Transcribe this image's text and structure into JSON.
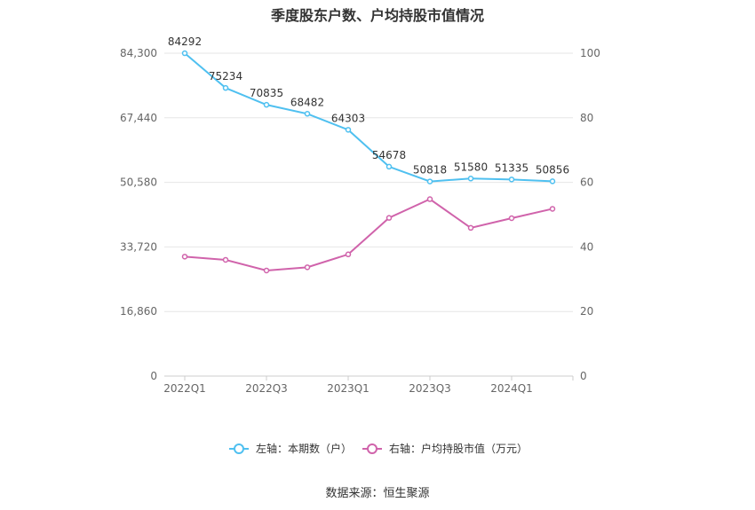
{
  "title": "季度股东户数、户均持股市值情况",
  "source": "数据来源：恒生聚源",
  "chart_data": {
    "type": "line",
    "title": "季度股东户数、户均持股市值情况",
    "x": [
      "2022Q1",
      "2022Q2",
      "2022Q3",
      "2022Q4",
      "2023Q1",
      "2023Q2",
      "2023Q3",
      "2023Q4",
      "2024Q1",
      "2024Q2"
    ],
    "x_tick_labels": [
      "2022Q1",
      "2022Q3",
      "2023Q1",
      "2023Q3",
      "2024Q1"
    ],
    "left_axis": {
      "range": [
        0,
        84300
      ],
      "ticks": [
        "0",
        "16,860",
        "33,720",
        "50,580",
        "67,440",
        "84,300"
      ]
    },
    "right_axis": {
      "range": [
        0,
        100
      ],
      "ticks": [
        "0",
        "20",
        "40",
        "60",
        "80",
        "100"
      ]
    },
    "series": [
      {
        "name": "左轴：本期数（户）",
        "axis": "left",
        "color": "#4fc0f0",
        "values": [
          84292,
          75234,
          70835,
          68482,
          64303,
          54678,
          50818,
          51580,
          51335,
          50856
        ],
        "labels": [
          "84292",
          "75234",
          "70835",
          "68482",
          "64303",
          "54678",
          "50818",
          "51580",
          "51335",
          "50856"
        ]
      },
      {
        "name": "右轴：户均持股市值（万元）",
        "axis": "right",
        "color": "#d063ab",
        "values": [
          37.0,
          36.0,
          32.7,
          33.7,
          37.7,
          49.0,
          54.8,
          45.9,
          48.9,
          51.8
        ]
      }
    ],
    "legend_position": "bottom",
    "grid": true
  }
}
